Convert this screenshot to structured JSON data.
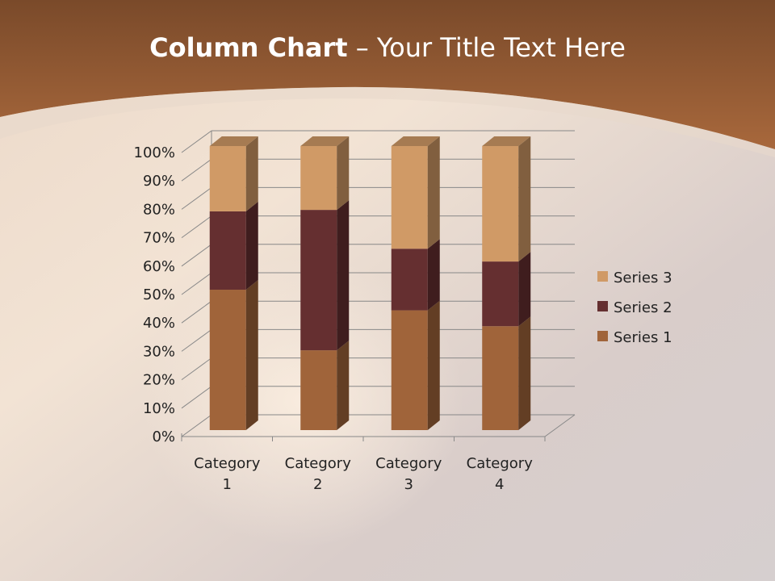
{
  "title": {
    "bold": "Column Chart",
    "rest": " – Your Title Text Here"
  },
  "chart_data": {
    "type": "bar",
    "subtype": "3d-stacked-100-percent",
    "categories": [
      "Category 1",
      "Category 2",
      "Category 3",
      "Category 4"
    ],
    "series": [
      {
        "name": "Series 1",
        "values": [
          4.3,
          2.5,
          3.5,
          4.5
        ],
        "color": "#A0643A"
      },
      {
        "name": "Series 2",
        "values": [
          2.4,
          4.4,
          1.8,
          2.8
        ],
        "color": "#652F30"
      },
      {
        "name": "Series 3",
        "values": [
          2,
          2,
          3,
          5
        ],
        "color": "#D09A66"
      }
    ],
    "y_ticks": [
      "0%",
      "10%",
      "20%",
      "30%",
      "40%",
      "50%",
      "60%",
      "70%",
      "80%",
      "90%",
      "100%"
    ],
    "ylim": [
      0,
      100
    ],
    "grid": true,
    "legend": "right"
  }
}
